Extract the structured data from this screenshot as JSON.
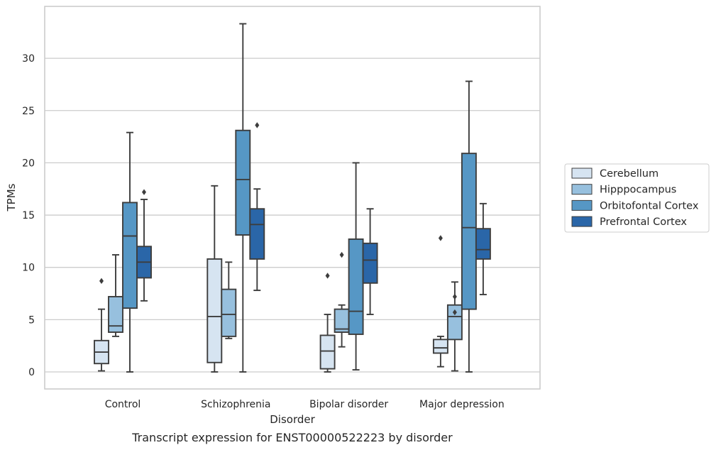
{
  "caption": "Transcript expression for ENST00000522223 by disorder",
  "chart_data": {
    "type": "box",
    "xlabel": "Disorder",
    "ylabel": "TPMs",
    "ylim": [
      -1.6,
      34.5
    ],
    "yticks": [
      0,
      5,
      10,
      15,
      20,
      25,
      30
    ],
    "grid": "horizontal",
    "legend_position": "right",
    "categories": [
      "Control",
      "Schizophrenia",
      "Bipolar disorder",
      "Major depression"
    ],
    "series": [
      {
        "name": "Cerebellum",
        "color": "#d6e4f1",
        "boxes": [
          {
            "whislo": 0.1,
            "q1": 0.8,
            "med": 1.9,
            "q3": 3.0,
            "whishi": 6.0,
            "fliers": [
              8.7
            ]
          },
          {
            "whislo": 0.0,
            "q1": 0.9,
            "med": 5.3,
            "q3": 10.8,
            "whishi": 17.8,
            "fliers": []
          },
          {
            "whislo": 0.0,
            "q1": 0.3,
            "med": 2.0,
            "q3": 3.5,
            "whishi": 5.5,
            "fliers": [
              9.2
            ]
          },
          {
            "whislo": 0.5,
            "q1": 1.8,
            "med": 2.3,
            "q3": 3.1,
            "whishi": 3.4,
            "fliers": [
              12.8
            ]
          }
        ]
      },
      {
        "name": "Hipppocampus",
        "color": "#97c0de",
        "boxes": [
          {
            "whislo": 3.4,
            "q1": 3.8,
            "med": 4.4,
            "q3": 7.2,
            "whishi": 11.2,
            "fliers": []
          },
          {
            "whislo": 3.2,
            "q1": 3.4,
            "med": 5.5,
            "q3": 7.9,
            "whishi": 10.5,
            "fliers": []
          },
          {
            "whislo": 2.4,
            "q1": 3.8,
            "med": 4.1,
            "q3": 6.0,
            "whishi": 6.4,
            "fliers": [
              11.2
            ]
          },
          {
            "whislo": 0.1,
            "q1": 3.1,
            "med": 5.3,
            "q3": 6.4,
            "whishi": 8.6,
            "fliers": [
              5.7,
              7.2
            ]
          }
        ]
      },
      {
        "name": "Orbitofontal Cortex",
        "color": "#5697c5",
        "boxes": [
          {
            "whislo": 0.0,
            "q1": 6.1,
            "med": 13.0,
            "q3": 16.2,
            "whishi": 22.9,
            "fliers": []
          },
          {
            "whislo": 0.0,
            "q1": 13.1,
            "med": 18.4,
            "q3": 23.1,
            "whishi": 33.3,
            "fliers": []
          },
          {
            "whislo": 0.2,
            "q1": 3.6,
            "med": 5.8,
            "q3": 12.7,
            "whishi": 20.0,
            "fliers": []
          },
          {
            "whislo": 0.0,
            "q1": 6.0,
            "med": 13.8,
            "q3": 20.9,
            "whishi": 27.8,
            "fliers": []
          }
        ]
      },
      {
        "name": "Prefrontal Cortex",
        "color": "#2a66a8",
        "boxes": [
          {
            "whislo": 6.8,
            "q1": 9.0,
            "med": 10.5,
            "q3": 12.0,
            "whishi": 16.5,
            "fliers": [
              17.2
            ]
          },
          {
            "whislo": 7.8,
            "q1": 10.8,
            "med": 14.1,
            "q3": 15.6,
            "whishi": 17.5,
            "fliers": [
              23.6
            ]
          },
          {
            "whislo": 5.5,
            "q1": 8.5,
            "med": 10.7,
            "q3": 12.3,
            "whishi": 15.6,
            "fliers": []
          },
          {
            "whislo": 7.4,
            "q1": 10.8,
            "med": 11.7,
            "q3": 13.7,
            "whishi": 16.1,
            "fliers": []
          }
        ]
      }
    ]
  }
}
